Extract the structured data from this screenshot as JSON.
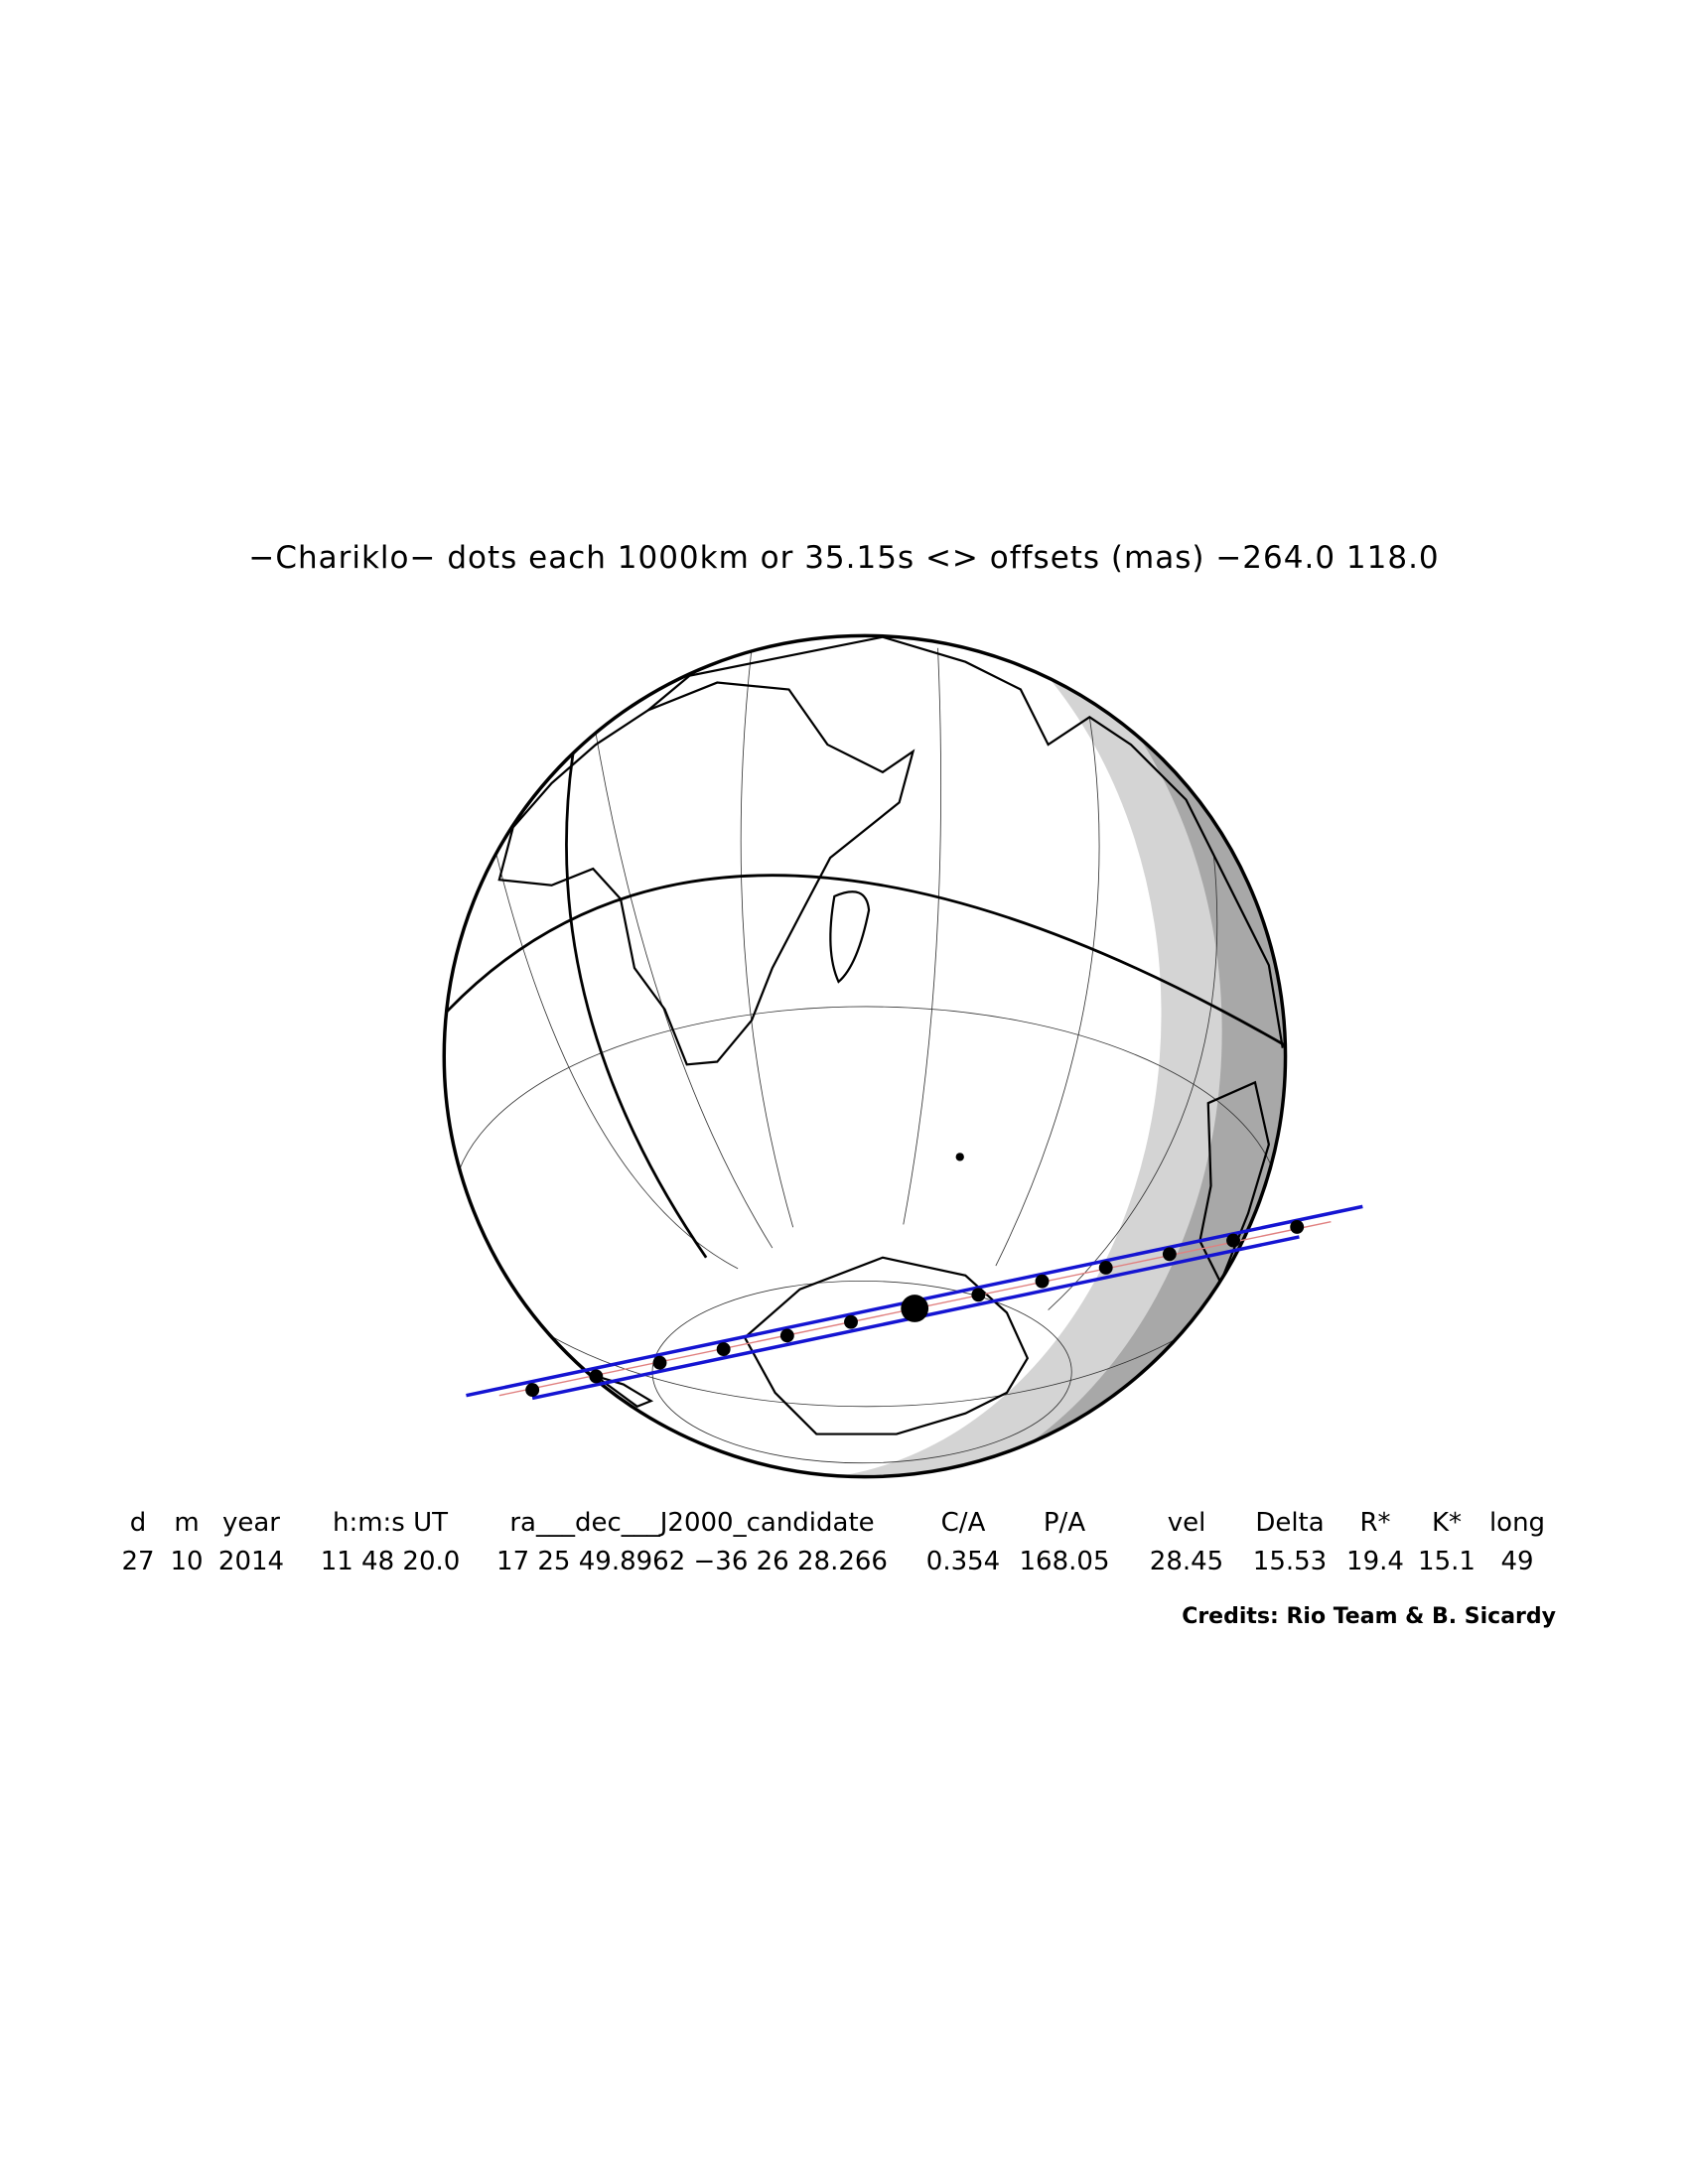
{
  "title": "−Chariklo− dots each 1000km or 35.15s <> offsets (mas) −264.0  118.0",
  "table": {
    "headers": [
      "d",
      "m",
      "year",
      "h:m:s UT",
      "ra___dec___J2000_candidate",
      "C/A",
      "P/A",
      "vel",
      "Delta",
      "R*",
      "K*",
      "long"
    ],
    "values": [
      "27",
      "10",
      "2014",
      "11 48 20.0",
      "17 25 49.8962 −36 26 28.266",
      "0.354",
      "168.05",
      "28.45",
      "15.53",
      "19.4",
      "15.1",
      "49"
    ]
  },
  "credits": "Credits: Rio Team & B. Sicardy"
}
